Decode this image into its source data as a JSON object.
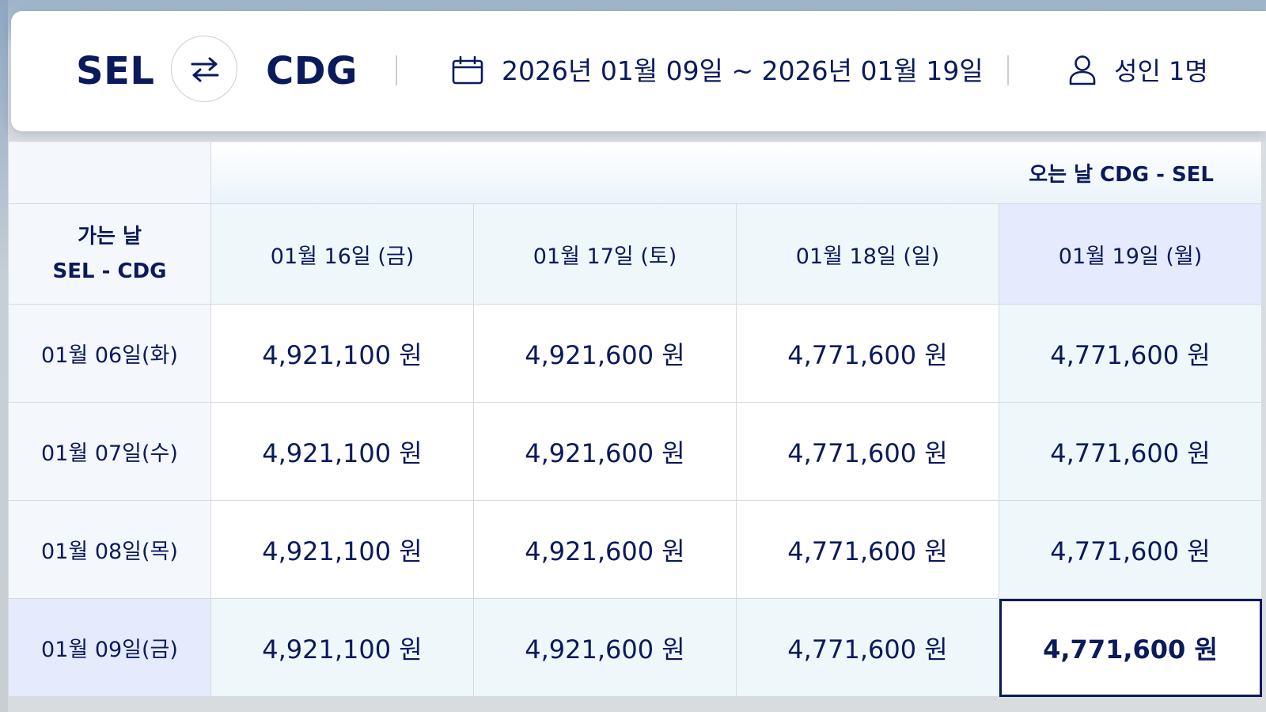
{
  "search": {
    "origin": "SEL",
    "destination": "CDG",
    "swap_icon": "swap-arrows-icon",
    "calendar_icon": "calendar-icon",
    "dates": "2026년 01월 09일 ~ 2026년 01월 19일",
    "person_icon": "person-icon",
    "passengers": "성인 1명"
  },
  "table": {
    "return_label": "오는 날 CDG - SEL",
    "depart_label_line1": "가는 날",
    "depart_label_line2": "SEL - CDG",
    "return_dates": [
      "01월 16일 (금)",
      "01월 17일 (토)",
      "01월 18일 (일)",
      "01월 19일 (월)"
    ],
    "rows": [
      {
        "depart_date": "01월 06일(화)",
        "prices": [
          "4,921,100 원",
          "4,921,600 원",
          "4,771,600 원",
          "4,771,600 원"
        ]
      },
      {
        "depart_date": "01월 07일(수)",
        "prices": [
          "4,921,100 원",
          "4,921,600 원",
          "4,771,600 원",
          "4,771,600 원"
        ]
      },
      {
        "depart_date": "01월 08일(목)",
        "prices": [
          "4,921,100 원",
          "4,921,600 원",
          "4,771,600 원",
          "4,771,600 원"
        ]
      },
      {
        "depart_date": "01월 09일(금)",
        "prices": [
          "4,921,100 원",
          "4,921,600 원",
          "4,771,600 원",
          "4,771,600 원"
        ]
      }
    ],
    "selected_depart": "01월 09일(금)",
    "selected_return": "01월 19일 (월)"
  },
  "colors": {
    "navy": "#0a1a5c",
    "selected_tint": "#e5eafc",
    "cross_tint": "#eef7fa",
    "border": "#d6dade"
  }
}
